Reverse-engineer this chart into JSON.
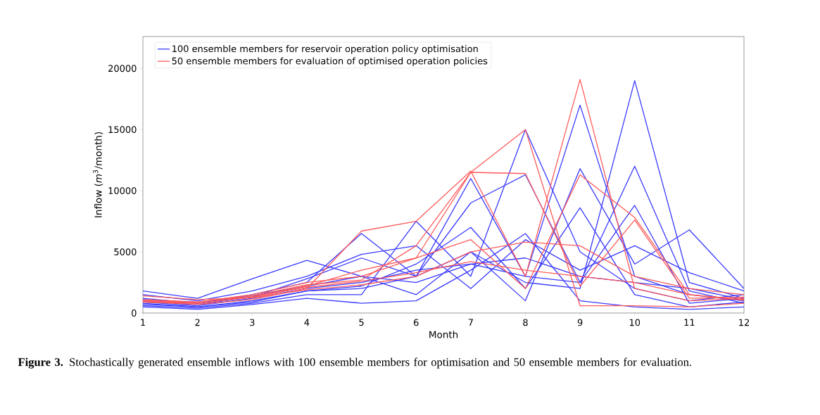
{
  "chart_data": {
    "type": "line",
    "xlabel": "Month",
    "ylabel": "Inflow (*m*$^{3}$/month)",
    "x": [
      1,
      2,
      3,
      4,
      5,
      6,
      7,
      8,
      9,
      10,
      11,
      12
    ],
    "xlim": [
      1,
      12
    ],
    "ylim": [
      0,
      22600
    ],
    "xticks": [
      1,
      2,
      3,
      4,
      5,
      6,
      7,
      8,
      9,
      10,
      11,
      12
    ],
    "yticks": [
      0,
      5000,
      10000,
      15000,
      20000
    ],
    "legend": "top left",
    "line_style": "solid",
    "annotations": [
      "**Figure 3.** Stochastically generated ensemble inflows with 100 ensemble members for optimisation and 50 ensemble members for evaluation."
    ],
    "series": [
      {
        "name": "100 ensemble members for reservoir operation policy optimisation",
        "color": "#3a3aff",
        "values": [
          900,
          600,
          1200,
          2000,
          2500,
          3500,
          4000,
          3000,
          17000,
          3000,
          1500,
          1000
        ]
      },
      {
        "color": "#3a3aff",
        "values": [
          800,
          500,
          1000,
          1800,
          2000,
          3000,
          5000,
          2500,
          2000,
          19000,
          2500,
          1200
        ]
      },
      {
        "color": "#3a3aff",
        "values": [
          1200,
          800,
          1500,
          2500,
          6500,
          3000,
          11000,
          3000,
          2500,
          12000,
          1800,
          800
        ]
      },
      {
        "color": "#3a3aff",
        "values": [
          600,
          400,
          800,
          1500,
          1500,
          7500,
          3000,
          15000,
          5000,
          2000,
          1000,
          1500
        ]
      },
      {
        "color": "#3a3aff",
        "values": [
          1000,
          700,
          1300,
          2800,
          4500,
          3000,
          9000,
          11300,
          2500,
          8800,
          800,
          1200
        ]
      },
      {
        "color": "#3a3aff",
        "values": [
          1800,
          1200,
          2800,
          4300,
          3000,
          1500,
          5000,
          1000,
          11800,
          4000,
          6800,
          2000
        ]
      },
      {
        "color": "#3a3aff",
        "values": [
          500,
          300,
          700,
          1200,
          800,
          1000,
          3500,
          6500,
          1000,
          500,
          300,
          500
        ]
      },
      {
        "color": "#3a3aff",
        "values": [
          1500,
          1000,
          1800,
          3000,
          4800,
          5500,
          2000,
          6000,
          3500,
          5500,
          3300,
          1800
        ]
      },
      {
        "color": "#3a3aff",
        "values": [
          700,
          500,
          900,
          1800,
          2200,
          4000,
          7000,
          2000,
          8600,
          1500,
          500,
          900
        ]
      },
      {
        "color": "#3a3aff",
        "values": [
          1100,
          800,
          1400,
          2200,
          3000,
          2500,
          4000,
          4500,
          3000,
          2500,
          2000,
          1100
        ]
      },
      {
        "name": "50 ensemble members for evaluation of optimised operation policies",
        "color": "#ff5a5a",
        "values": [
          1000,
          800,
          1300,
          2100,
          2600,
          3300,
          4200,
          3500,
          3000,
          2500,
          1500,
          1050
        ]
      },
      {
        "color": "#ff5a5a",
        "values": [
          900,
          700,
          1100,
          2000,
          6700,
          7500,
          11600,
          3000,
          19100,
          2000,
          1000,
          1200
        ]
      },
      {
        "color": "#ff5a5a",
        "values": [
          1100,
          900,
          1400,
          2300,
          2700,
          5500,
          11500,
          11400,
          2200,
          7600,
          1200,
          1300
        ]
      },
      {
        "color": "#ff5a5a",
        "values": [
          900,
          800,
          1300,
          2200,
          3500,
          4500,
          11500,
          15000,
          600,
          600,
          500,
          800
        ]
      },
      {
        "color": "#ff5a5a",
        "values": [
          1000,
          900,
          1500,
          2500,
          3000,
          4500,
          6000,
          2000,
          11300,
          7800,
          1500,
          1100
        ]
      },
      {
        "color": "#ff5a5a",
        "values": [
          1400,
          1100,
          1250,
          1900,
          2300,
          3000,
          5000,
          5800,
          5500,
          3000,
          2000,
          1500
        ]
      }
    ]
  }
}
